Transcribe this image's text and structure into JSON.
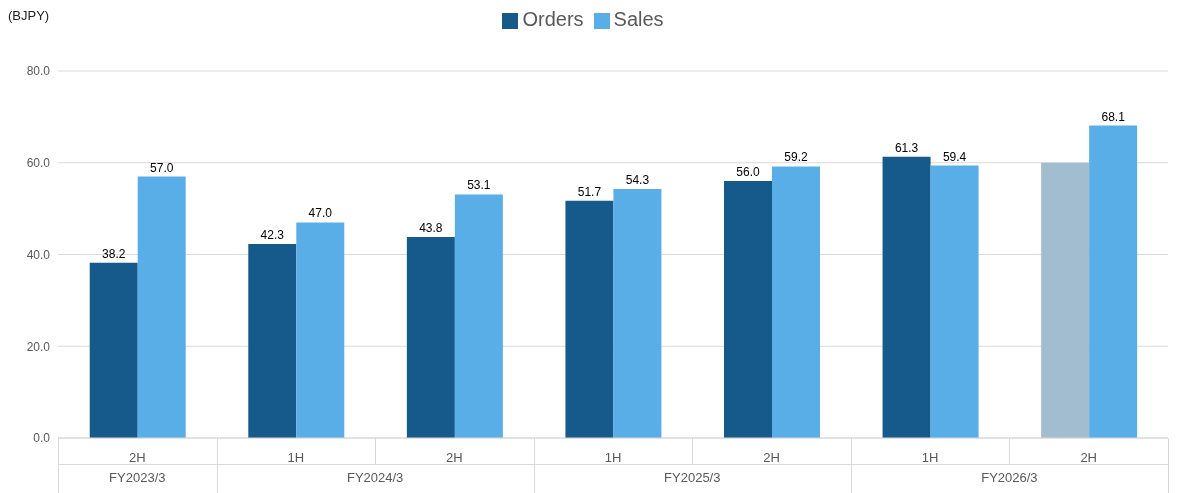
{
  "chart_data": {
    "type": "bar",
    "ylabel": "(BJPY)",
    "categories": [
      "2H",
      "1H",
      "2H",
      "1H",
      "2H",
      "1H",
      "2H"
    ],
    "annotations": [
      "FY2023/3",
      "FY2024/3",
      "FY2025/3",
      "FY2026/3"
    ],
    "series": [
      {
        "name": "Orders",
        "color": "#155a8a",
        "colors": [
          "#155a8a",
          "#155a8a",
          "#155a8a",
          "#155a8a",
          "#155a8a",
          "#155a8a",
          "#a3bdd0"
        ],
        "values": [
          38.2,
          42.3,
          43.8,
          51.7,
          56.0,
          61.3,
          60.0
        ],
        "value_labels": [
          "38.2",
          "42.3",
          "43.8",
          "51.7",
          "56.0",
          "61.3",
          null
        ]
      },
      {
        "name": "Sales",
        "color": "#5aaee8",
        "values": [
          57.0,
          47.0,
          53.1,
          54.3,
          59.2,
          59.4,
          68.1
        ],
        "value_labels": [
          "57.0",
          "47.0",
          "53.1",
          "54.3",
          "59.2",
          "59.4",
          "68.1"
        ]
      }
    ],
    "ylim": [
      0,
      80
    ],
    "yticks": [
      {
        "value": 0,
        "label": "0.0"
      },
      {
        "value": 20,
        "label": "20.0"
      },
      {
        "value": 40,
        "label": "40.0"
      },
      {
        "value": 60,
        "label": "60.0"
      },
      {
        "value": 80,
        "label": "80.0"
      }
    ],
    "grid": "y",
    "legend": "top"
  }
}
